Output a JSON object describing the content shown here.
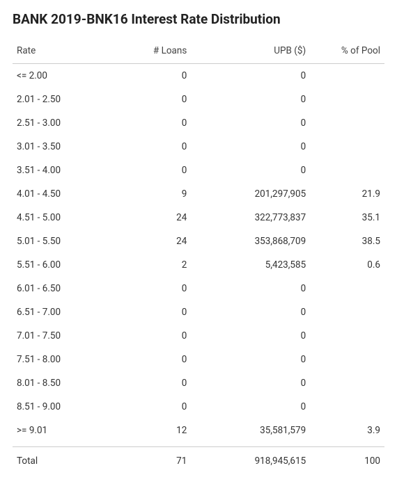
{
  "title": "BANK 2019-BNK16 Interest Rate Distribution",
  "table": {
    "columns": {
      "rate": "Rate",
      "loans": "# Loans",
      "upb": "UPB ($)",
      "pct": "% of Pool"
    },
    "rows": [
      {
        "rate": "<= 2.00",
        "loans": "0",
        "upb": "0",
        "pct": ""
      },
      {
        "rate": "2.01 - 2.50",
        "loans": "0",
        "upb": "0",
        "pct": ""
      },
      {
        "rate": "2.51 - 3.00",
        "loans": "0",
        "upb": "0",
        "pct": ""
      },
      {
        "rate": "3.01 - 3.50",
        "loans": "0",
        "upb": "0",
        "pct": ""
      },
      {
        "rate": "3.51 - 4.00",
        "loans": "0",
        "upb": "0",
        "pct": ""
      },
      {
        "rate": "4.01 - 4.50",
        "loans": "9",
        "upb": "201,297,905",
        "pct": "21.9"
      },
      {
        "rate": "4.51 - 5.00",
        "loans": "24",
        "upb": "322,773,837",
        "pct": "35.1"
      },
      {
        "rate": "5.01 - 5.50",
        "loans": "24",
        "upb": "353,868,709",
        "pct": "38.5"
      },
      {
        "rate": "5.51 - 6.00",
        "loans": "2",
        "upb": "5,423,585",
        "pct": "0.6"
      },
      {
        "rate": "6.01 - 6.50",
        "loans": "0",
        "upb": "0",
        "pct": ""
      },
      {
        "rate": "6.51 - 7.00",
        "loans": "0",
        "upb": "0",
        "pct": ""
      },
      {
        "rate": "7.01 - 7.50",
        "loans": "0",
        "upb": "0",
        "pct": ""
      },
      {
        "rate": "7.51 - 8.00",
        "loans": "0",
        "upb": "0",
        "pct": ""
      },
      {
        "rate": "8.01 - 8.50",
        "loans": "0",
        "upb": "0",
        "pct": ""
      },
      {
        "rate": "8.51 - 9.00",
        "loans": "0",
        "upb": "0",
        "pct": ""
      },
      {
        "rate": ">= 9.01",
        "loans": "12",
        "upb": "35,581,579",
        "pct": "3.9"
      }
    ],
    "total": {
      "label": "Total",
      "loans": "71",
      "upb": "918,945,615",
      "pct": "100"
    }
  },
  "style": {
    "title_fontsize": 19,
    "body_fontsize": 13.5,
    "text_color": "#333333",
    "title_color": "#222222",
    "border_color": "#cccccc",
    "background_color": "#ffffff",
    "column_widths_pct": [
      24,
      24,
      32,
      20
    ],
    "column_align": [
      "left",
      "right",
      "right",
      "right"
    ]
  }
}
